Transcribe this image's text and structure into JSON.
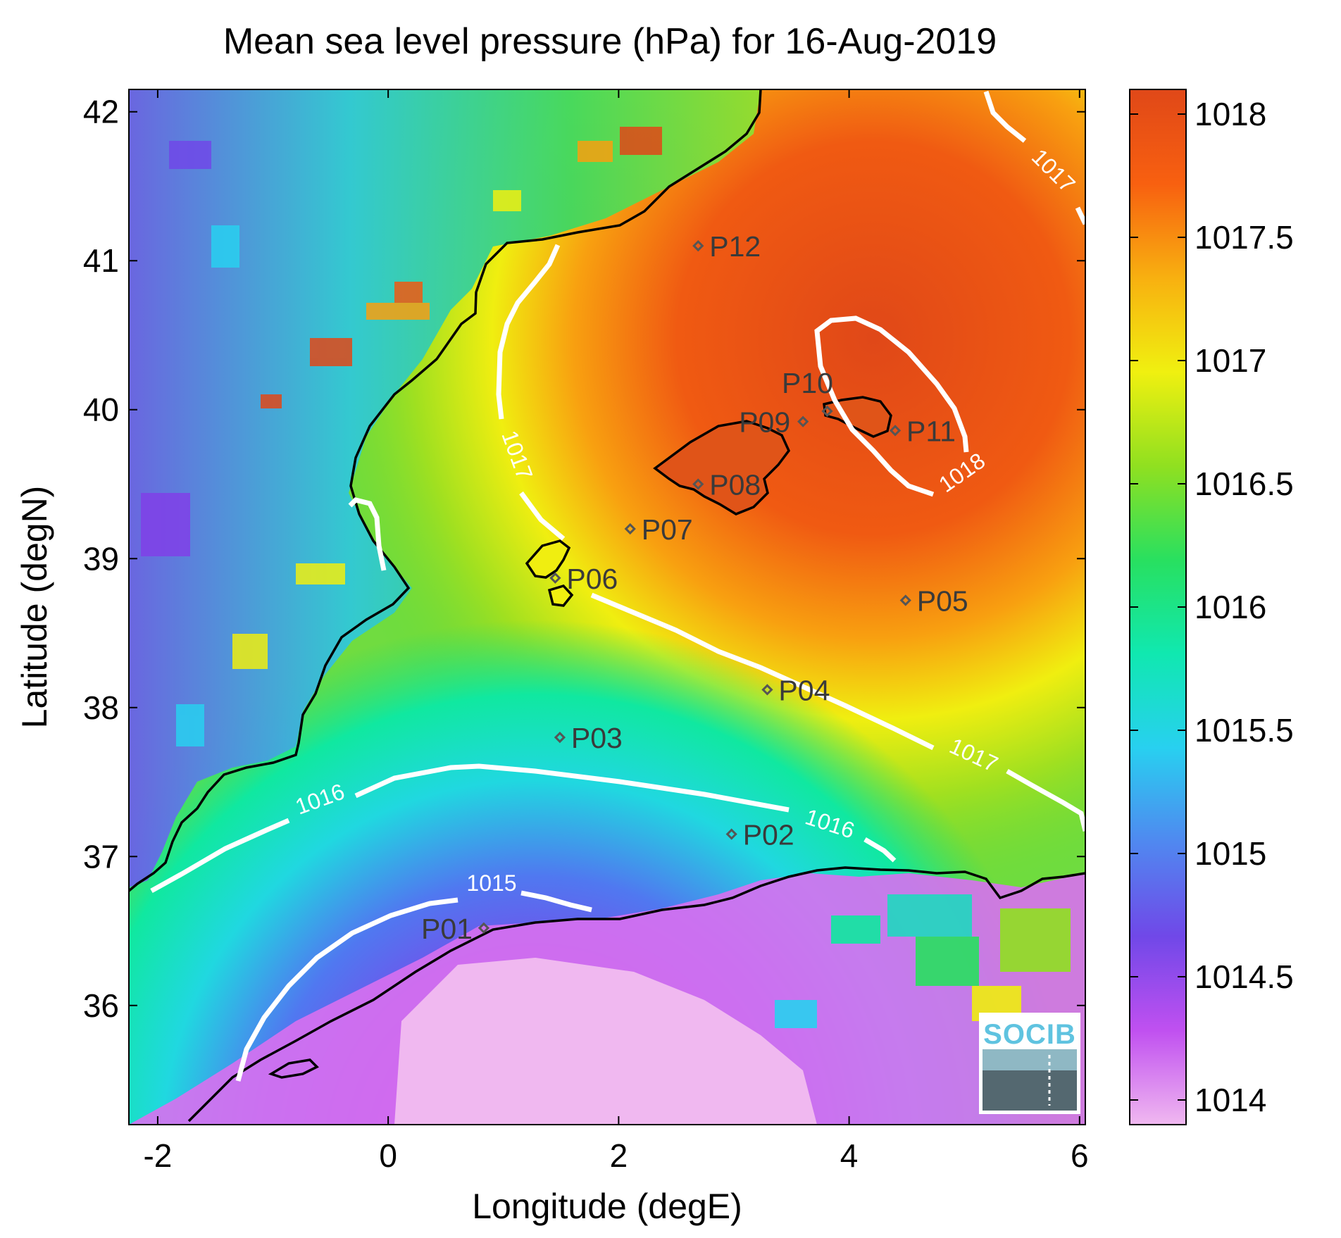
{
  "title": "Mean sea level pressure (hPa) for 16-Aug-2019",
  "x_axis": {
    "label": "Longitude (degE)",
    "range": [
      -2.25,
      6.05
    ],
    "ticks": [
      "-2",
      "0",
      "2",
      "4",
      "6"
    ],
    "tick_values": [
      -2,
      0,
      2,
      4,
      6
    ]
  },
  "y_axis": {
    "label": "Latitude (degN)",
    "range": [
      35.2,
      42.15
    ],
    "ticks": [
      "36",
      "37",
      "38",
      "39",
      "40",
      "41",
      "42"
    ],
    "tick_values": [
      36,
      37,
      38,
      39,
      40,
      41,
      42
    ]
  },
  "colorbar": {
    "range": [
      1013.9,
      1018.1
    ],
    "ticks": [
      "1014",
      "1014.5",
      "1015",
      "1015.5",
      "1016",
      "1016.5",
      "1017",
      "1017.5",
      "1018"
    ],
    "tick_values": [
      1014,
      1014.5,
      1015,
      1015.5,
      1016,
      1016.5,
      1017,
      1017.5,
      1018
    ],
    "colormap": [
      "#f0b8f0",
      "#c050f0",
      "#7048e8",
      "#5088f0",
      "#28d0f0",
      "#10e8b0",
      "#28e060",
      "#90e020",
      "#f0f010",
      "#f8b010",
      "#f86010",
      "#e04818"
    ]
  },
  "contours": [
    {
      "label": "1015"
    },
    {
      "label": "1016"
    },
    {
      "label": "1017"
    },
    {
      "label": "1018"
    }
  ],
  "stations": [
    {
      "name": "P01",
      "lon": 0.83,
      "lat": 36.52
    },
    {
      "name": "P02",
      "lon": 2.98,
      "lat": 37.15
    },
    {
      "name": "P03",
      "lon": 1.49,
      "lat": 37.8
    },
    {
      "name": "P04",
      "lon": 3.29,
      "lat": 38.12
    },
    {
      "name": "P05",
      "lon": 4.49,
      "lat": 38.72
    },
    {
      "name": "P06",
      "lon": 1.45,
      "lat": 38.87
    },
    {
      "name": "P07",
      "lon": 2.1,
      "lat": 39.2
    },
    {
      "name": "P08",
      "lon": 2.69,
      "lat": 39.5
    },
    {
      "name": "P09",
      "lon": 3.6,
      "lat": 39.92
    },
    {
      "name": "P10",
      "lon": 3.81,
      "lat": 39.99
    },
    {
      "name": "P11",
      "lon": 4.4,
      "lat": 39.86
    },
    {
      "name": "P12",
      "lon": 2.69,
      "lat": 41.1
    }
  ],
  "logo": {
    "text": "SOCIB"
  },
  "colors": {
    "contour": "#ffffff",
    "coast": "#000000",
    "station": "#555555"
  }
}
